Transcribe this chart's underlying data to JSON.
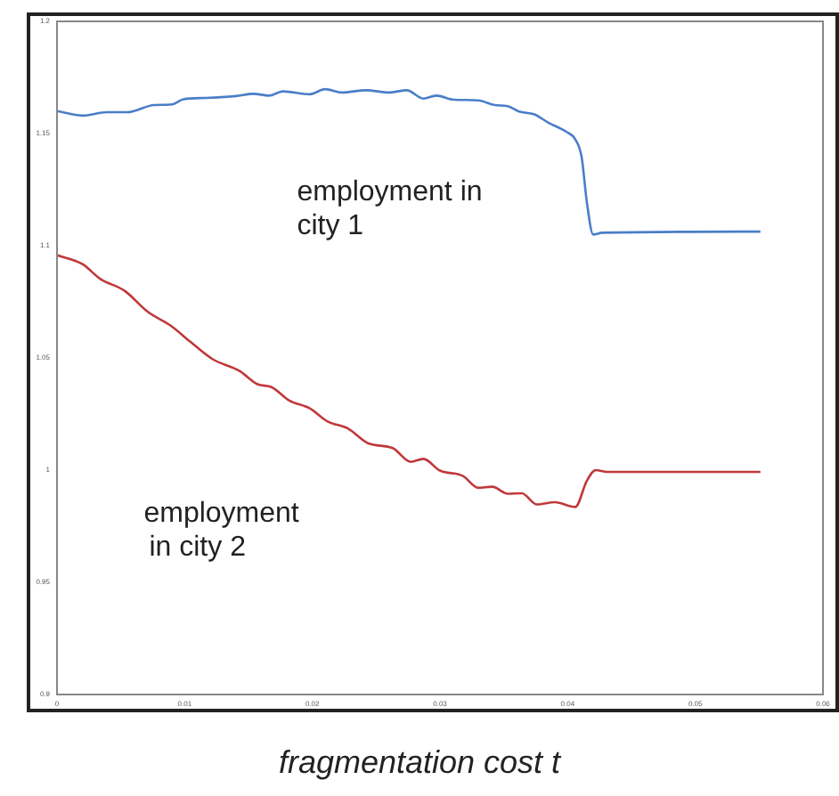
{
  "chart_data": {
    "type": "line",
    "xlabel": "fragmentation cost  t",
    "xlim": [
      0,
      0.06
    ],
    "xticks": [
      0,
      0.01,
      0.02,
      0.03,
      0.04,
      0.05,
      0.06
    ],
    "ylim": [
      0.9,
      1.2
    ],
    "yticks": [
      0.9,
      0.95,
      1,
      1.05,
      1.1,
      1.15,
      1.2
    ],
    "grid": false,
    "legend": false,
    "marker": "none",
    "line_style": "solid",
    "series": [
      {
        "name": "employment in city 1",
        "color": "#4a7ec8",
        "x": [
          0,
          0.002,
          0.0039,
          0.0055,
          0.0076,
          0.009,
          0.0099,
          0.0117,
          0.014,
          0.0154,
          0.0166,
          0.0177,
          0.0198,
          0.021,
          0.0223,
          0.0242,
          0.026,
          0.0274,
          0.0287,
          0.0297,
          0.0311,
          0.033,
          0.0343,
          0.0353,
          0.0362,
          0.0374,
          0.0385,
          0.0399,
          0.0406,
          0.0411,
          0.0415,
          0.042,
          0.0427,
          0.0551
        ],
        "values": [
          1.16,
          1.158,
          1.1595,
          1.1595,
          1.1627,
          1.163,
          1.1653,
          1.1659,
          1.1667,
          1.1677,
          1.1669,
          1.1688,
          1.1675,
          1.1698,
          1.1683,
          1.1693,
          1.1683,
          1.1693,
          1.1656,
          1.1669,
          1.1651,
          1.1648,
          1.1627,
          1.1622,
          1.1598,
          1.1585,
          1.1548,
          1.1508,
          1.1474,
          1.1394,
          1.1196,
          1.105,
          1.1058,
          1.1063
        ]
      },
      {
        "name": "employment in city 2",
        "color": "#c0383a",
        "x": [
          0,
          0.002,
          0.0034,
          0.0053,
          0.0071,
          0.009,
          0.0104,
          0.0122,
          0.0143,
          0.0157,
          0.0168,
          0.0182,
          0.0198,
          0.0212,
          0.0228,
          0.0244,
          0.0263,
          0.0277,
          0.0287,
          0.03,
          0.0318,
          0.033,
          0.0341,
          0.0353,
          0.0364,
          0.0376,
          0.039,
          0.0406,
          0.0415,
          0.0422,
          0.0431,
          0.0551
        ],
        "values": [
          1.0958,
          1.0918,
          1.0852,
          1.0799,
          1.0706,
          1.064,
          1.0574,
          1.0494,
          1.0442,
          1.0383,
          1.037,
          1.031,
          1.0275,
          1.0217,
          1.0185,
          1.0119,
          1.0098,
          1.0037,
          1.005,
          0.9998,
          0.9974,
          0.9921,
          0.9926,
          0.9895,
          0.9897,
          0.9847,
          0.9857,
          0.9836,
          0.9952,
          1.0,
          0.9992,
          0.9992
        ]
      }
    ]
  }
}
